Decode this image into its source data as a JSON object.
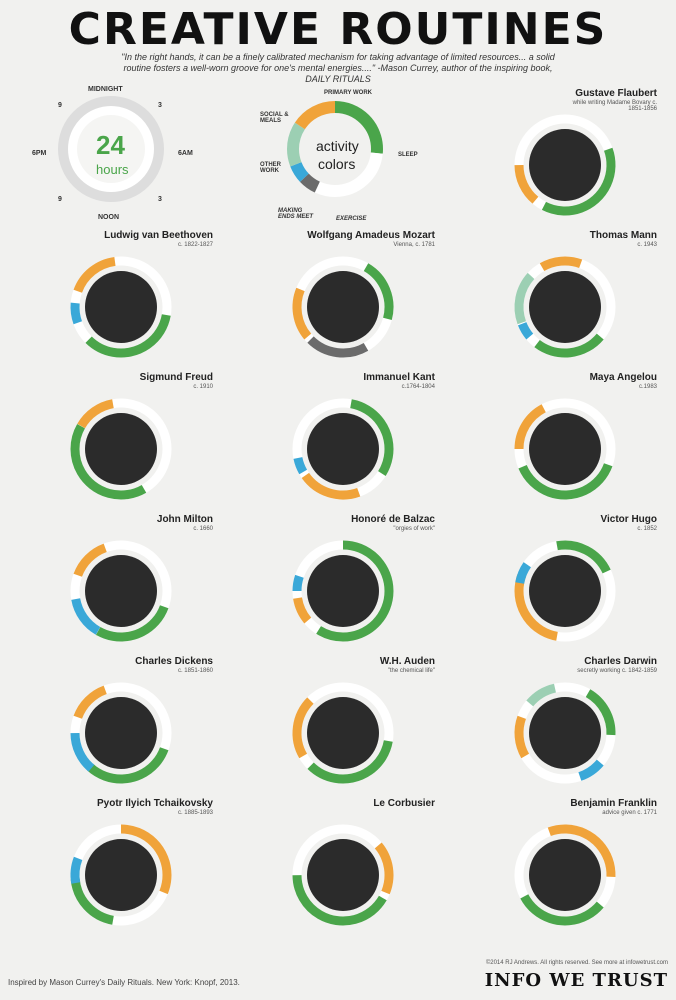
{
  "title": "CREATIVE ROUTINES",
  "quote": "\"In the right hands, it can be a finely calibrated mechanism for taking advantage of limited resources... a solid routine fosters a well-worn groove for one's mental energies....\" -Mason Currey, author of the inspiring book, DAILY RITUALS",
  "clock": {
    "center_big": "24",
    "center_small": "hours",
    "top": "MIDNIGHT",
    "bottom": "NOON",
    "left": "6PM",
    "right": "6AM",
    "n9a": "9",
    "n3a": "3",
    "n9b": "9",
    "n3b": "3",
    "note": "hour tick"
  },
  "legend": {
    "center_1": "activity",
    "center_2": "colors",
    "primary": "PRIMARY WORK",
    "sleep": "SLEEP",
    "social": "SOCIAL & MEALS",
    "other": "OTHER WORK",
    "making": "MAKING ENDS MEET",
    "exercise": "EXERCISE"
  },
  "colors": {
    "primary": "#4aa54a",
    "sleep": "#ffffff",
    "social": "#f0a33a",
    "other": "#9ccfb3",
    "making": "#6b6b6b",
    "exercise": "#3aa8d8"
  },
  "people": [
    {
      "name": "Gustave Flaubert",
      "sub": "while writing Madame Bovary c. 1851-1856",
      "photo": "portrait"
    },
    {
      "name": "Ludwig van Beethoven",
      "sub": "c. 1822-1827",
      "photo": "portrait"
    },
    {
      "name": "Wolfgang Amadeus Mozart",
      "sub": "Vienna, c. 1781",
      "photo": "portrait"
    },
    {
      "name": "Thomas Mann",
      "sub": "c. 1943",
      "photo": "portrait"
    },
    {
      "name": "Sigmund Freud",
      "sub": "c. 1910",
      "photo": "portrait"
    },
    {
      "name": "Immanuel Kant",
      "sub": "c.1764-1804",
      "photo": "portrait"
    },
    {
      "name": "Maya Angelou",
      "sub": "c.1983",
      "photo": "portrait"
    },
    {
      "name": "John Milton",
      "sub": "c. 1660",
      "photo": "portrait"
    },
    {
      "name": "Honoré de Balzac",
      "sub": "\"orgies of work\"",
      "photo": "portrait"
    },
    {
      "name": "Victor Hugo",
      "sub": "c. 1852",
      "photo": "portrait"
    },
    {
      "name": "Charles Dickens",
      "sub": "c. 1851-1860",
      "photo": "portrait"
    },
    {
      "name": "W.H. Auden",
      "sub": "\"the chemical life\"",
      "photo": "portrait"
    },
    {
      "name": "Charles Darwin",
      "sub": "secretly working c. 1842-1859",
      "photo": "portrait"
    },
    {
      "name": "Pyotr Ilyich Tchaikovsky",
      "sub": "c. 1885-1893",
      "photo": "portrait"
    },
    {
      "name": "Le Corbusier",
      "sub": "",
      "photo": "portrait"
    },
    {
      "name": "Benjamin Franklin",
      "sub": "advice given c. 1771",
      "photo": "portrait"
    }
  ],
  "footer": {
    "left": "Inspired by Mason Currey's Daily Rituals. New York: Knopf, 2013.",
    "copyright": "©2014 RJ Andrews. All rights reserved. See more at infowetrust.com",
    "brand": "INFO WE TRUST"
  }
}
